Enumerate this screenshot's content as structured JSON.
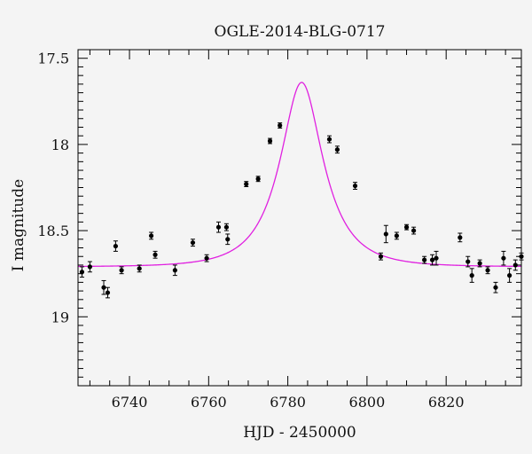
{
  "chart_data": {
    "type": "scatter",
    "title": "OGLE-2014-BLG-0717",
    "xlabel": "HJD - 2450000",
    "ylabel": "I magnitude",
    "xlim": [
      6727,
      6839
    ],
    "ylim": [
      19.4,
      17.45
    ],
    "y_inverted": true,
    "x_ticks": [
      6740,
      6760,
      6780,
      6800,
      6820
    ],
    "y_ticks": [
      17.5,
      18,
      18.5,
      19
    ],
    "y_tick_labels": [
      "17.5",
      "18",
      "18.5",
      "19"
    ],
    "grid": false,
    "colors": {
      "points": "#000000",
      "model": "#e020e0",
      "background": "#f4f4f4"
    },
    "points": [
      {
        "x": 6728.0,
        "y": 18.74,
        "err": 0.03
      },
      {
        "x": 6730.0,
        "y": 18.71,
        "err": 0.03
      },
      {
        "x": 6733.5,
        "y": 18.83,
        "err": 0.04
      },
      {
        "x": 6734.5,
        "y": 18.86,
        "err": 0.03
      },
      {
        "x": 6736.5,
        "y": 18.59,
        "err": 0.03
      },
      {
        "x": 6738.0,
        "y": 18.73,
        "err": 0.02
      },
      {
        "x": 6742.5,
        "y": 18.72,
        "err": 0.02
      },
      {
        "x": 6745.5,
        "y": 18.53,
        "err": 0.02
      },
      {
        "x": 6746.5,
        "y": 18.64,
        "err": 0.02
      },
      {
        "x": 6751.5,
        "y": 18.73,
        "err": 0.03
      },
      {
        "x": 6756.0,
        "y": 18.57,
        "err": 0.02
      },
      {
        "x": 6759.5,
        "y": 18.66,
        "err": 0.02
      },
      {
        "x": 6762.5,
        "y": 18.48,
        "err": 0.03
      },
      {
        "x": 6764.5,
        "y": 18.48,
        "err": 0.02
      },
      {
        "x": 6764.8,
        "y": 18.55,
        "err": 0.03
      },
      {
        "x": 6769.5,
        "y": 18.23,
        "err": 0.015
      },
      {
        "x": 6772.5,
        "y": 18.2,
        "err": 0.015
      },
      {
        "x": 6775.5,
        "y": 17.98,
        "err": 0.015
      },
      {
        "x": 6778.0,
        "y": 17.89,
        "err": 0.015
      },
      {
        "x": 6790.5,
        "y": 17.97,
        "err": 0.02
      },
      {
        "x": 6792.5,
        "y": 18.03,
        "err": 0.02
      },
      {
        "x": 6797.0,
        "y": 18.24,
        "err": 0.02
      },
      {
        "x": 6803.5,
        "y": 18.65,
        "err": 0.02
      },
      {
        "x": 6804.8,
        "y": 18.52,
        "err": 0.05
      },
      {
        "x": 6807.5,
        "y": 18.53,
        "err": 0.02
      },
      {
        "x": 6810.0,
        "y": 18.48,
        "err": 0.015
      },
      {
        "x": 6811.8,
        "y": 18.5,
        "err": 0.02
      },
      {
        "x": 6814.5,
        "y": 18.67,
        "err": 0.02
      },
      {
        "x": 6816.5,
        "y": 18.67,
        "err": 0.03
      },
      {
        "x": 6817.5,
        "y": 18.66,
        "err": 0.04
      },
      {
        "x": 6823.5,
        "y": 18.54,
        "err": 0.025
      },
      {
        "x": 6825.5,
        "y": 18.68,
        "err": 0.03
      },
      {
        "x": 6826.5,
        "y": 18.76,
        "err": 0.04
      },
      {
        "x": 6828.5,
        "y": 18.69,
        "err": 0.02
      },
      {
        "x": 6830.5,
        "y": 18.73,
        "err": 0.02
      },
      {
        "x": 6832.5,
        "y": 18.83,
        "err": 0.03
      },
      {
        "x": 6834.5,
        "y": 18.66,
        "err": 0.04
      },
      {
        "x": 6836.0,
        "y": 18.76,
        "err": 0.04
      },
      {
        "x": 6837.5,
        "y": 18.7,
        "err": 0.03
      },
      {
        "x": 6839.0,
        "y": 18.65,
        "err": 0.02
      }
    ],
    "model_curve": {
      "peak_x": 6783.5,
      "peak_mag": 17.64,
      "baseline_mag": 18.71,
      "x_samples": [
        6727,
        6735,
        6745,
        6755,
        6765,
        6772,
        6776,
        6780,
        6783.5,
        6787,
        6791,
        6795,
        6802,
        6812,
        6822,
        6832,
        6839
      ]
    }
  }
}
